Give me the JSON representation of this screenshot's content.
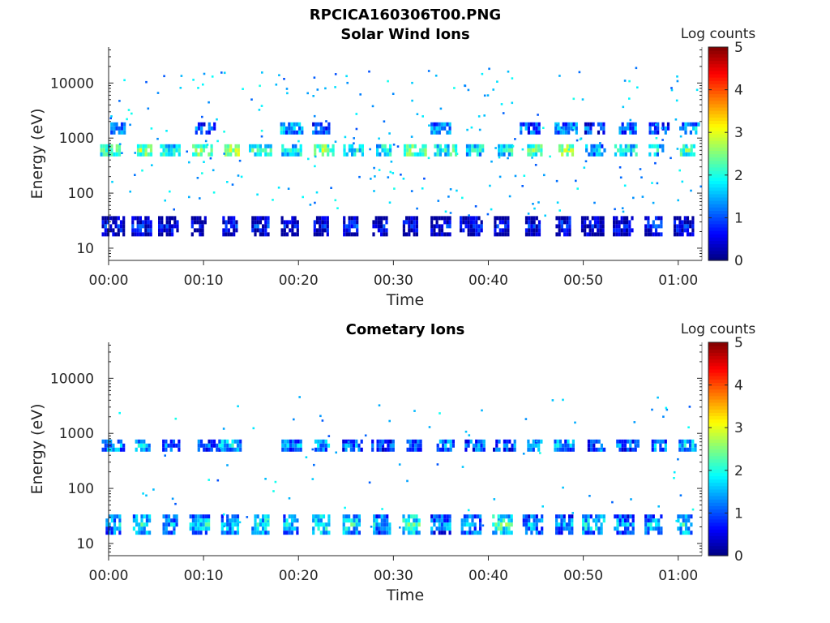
{
  "figure_title": "RPCICA160306T00.PNG",
  "colors": {
    "axis": "#262626",
    "background": "#ffffff",
    "colormap": "jet"
  },
  "chart_data": [
    {
      "type": "heatmap",
      "title": "Solar Wind Ions",
      "xlabel": "Time",
      "ylabel": "Energy (eV)",
      "x_ticks": [
        "00:00",
        "00:10",
        "00:20",
        "00:30",
        "00:40",
        "00:50",
        "01:00"
      ],
      "x_tick_minutes": [
        0,
        10,
        20,
        30,
        40,
        50,
        60
      ],
      "xlim_minutes": [
        0,
        62.5
      ],
      "y_scale": "log",
      "y_ticks": [
        "10",
        "100",
        "1000",
        "10000"
      ],
      "y_tick_values": [
        10,
        100,
        1000,
        10000
      ],
      "ylim": [
        6,
        45000
      ],
      "colorbar": {
        "label": "Log counts",
        "ticks": [
          "0",
          "1",
          "2",
          "3",
          "4",
          "5"
        ],
        "range": [
          0,
          5
        ]
      },
      "bands": [
        {
          "energy_eV": 600,
          "minutes": [
            0.2,
            3.8,
            6.5,
            9.9,
            13.0,
            16.0,
            19.3,
            22.7,
            25.8,
            29.0,
            32.3,
            35.5,
            38.6,
            41.8,
            44.9,
            48.2,
            51.3,
            54.5,
            57.7,
            61.0
          ],
          "log_counts": [
            2.2,
            2.6,
            2.0,
            2.5,
            2.8,
            2.0,
            1.9,
            2.5,
            1.9,
            2.0,
            2.4,
            2.1,
            1.9,
            1.9,
            2.3,
            2.6,
            1.6,
            2.0,
            1.9,
            2.3
          ]
        },
        {
          "energy_eV": 1500,
          "minutes": [
            1.0,
            10.2,
            19.3,
            22.4,
            35.0,
            44.4,
            48.2,
            51.2,
            54.7,
            58.0,
            61.2
          ],
          "log_counts": [
            1.3,
            1.2,
            1.5,
            1.1,
            1.4,
            1.2,
            1.4,
            1.0,
            1.3,
            1.1,
            1.5
          ]
        },
        {
          "energy_eV": 25,
          "minutes": [
            0.5,
            3.5,
            6.3,
            9.5,
            12.8,
            16.0,
            19.1,
            22.4,
            25.5,
            28.6,
            31.8,
            35.0,
            38.2,
            41.4,
            44.7,
            47.9,
            51.0,
            54.2,
            57.4,
            60.6
          ],
          "log_counts": [
            0.6,
            0.7,
            0.6,
            0.5,
            0.6,
            0.7,
            0.5,
            0.6,
            0.7,
            0.5,
            0.6,
            0.6,
            0.7,
            0.5,
            0.6,
            0.8,
            0.6,
            0.5,
            0.9,
            0.6
          ]
        }
      ]
    },
    {
      "type": "heatmap",
      "title": "Cometary Ions",
      "xlabel": "Time",
      "ylabel": "Energy (eV)",
      "x_ticks": [
        "00:00",
        "00:10",
        "00:20",
        "00:30",
        "00:40",
        "00:50",
        "01:00"
      ],
      "x_tick_minutes": [
        0,
        10,
        20,
        30,
        40,
        50,
        60
      ],
      "xlim_minutes": [
        0,
        62.5
      ],
      "y_scale": "log",
      "y_ticks": [
        "10",
        "100",
        "1000",
        "10000"
      ],
      "y_tick_values": [
        10,
        100,
        1000,
        10000
      ],
      "ylim": [
        6,
        45000
      ],
      "colorbar": {
        "label": "Log counts",
        "ticks": [
          "0",
          "1",
          "2",
          "3",
          "4",
          "5"
        ],
        "range": [
          0,
          5
        ]
      },
      "bands": [
        {
          "energy_eV": 600,
          "minutes": [
            0.5,
            3.6,
            6.6,
            10.6,
            12.8,
            19.3,
            22.5,
            25.7,
            28.9,
            32.2,
            35.5,
            38.6,
            41.7,
            44.9,
            48.0,
            51.4,
            54.7,
            58.0,
            61.0
          ],
          "log_counts": [
            1.4,
            1.5,
            1.2,
            1.1,
            1.6,
            1.4,
            1.5,
            1.2,
            1.1,
            1.3,
            1.4,
            1.2,
            1.1,
            1.4,
            1.5,
            1.0,
            1.2,
            1.3,
            1.6
          ]
        },
        {
          "energy_eV": 22,
          "minutes": [
            0.5,
            3.5,
            6.5,
            9.6,
            12.8,
            16.0,
            19.2,
            22.4,
            25.6,
            28.8,
            31.9,
            35.0,
            38.2,
            41.5,
            44.7,
            48.0,
            51.1,
            54.3,
            57.4,
            60.7
          ],
          "log_counts": [
            1.6,
            1.9,
            1.5,
            1.8,
            1.6,
            1.9,
            1.7,
            2.0,
            1.9,
            1.6,
            2.1,
            1.4,
            1.5,
            2.2,
            1.5,
            1.4,
            1.8,
            1.4,
            1.5,
            1.9
          ]
        }
      ]
    }
  ]
}
